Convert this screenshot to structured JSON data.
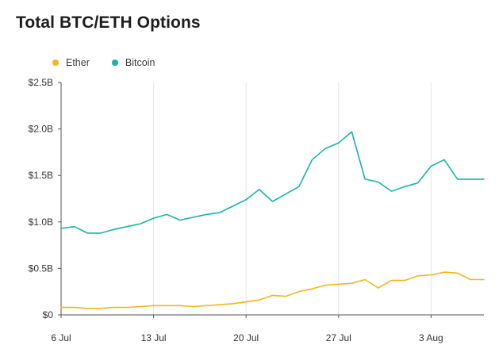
{
  "chart_data": {
    "type": "line",
    "title": "Total BTC/ETH Options",
    "xlabel": "",
    "ylabel": "",
    "x": [
      "6 Jul",
      "7 Jul",
      "8 Jul",
      "9 Jul",
      "10 Jul",
      "11 Jul",
      "12 Jul",
      "13 Jul",
      "14 Jul",
      "15 Jul",
      "16 Jul",
      "17 Jul",
      "18 Jul",
      "19 Jul",
      "20 Jul",
      "21 Jul",
      "22 Jul",
      "23 Jul",
      "24 Jul",
      "25 Jul",
      "26 Jul",
      "27 Jul",
      "28 Jul",
      "29 Jul",
      "30 Jul",
      "31 Jul",
      "1 Aug",
      "2 Aug",
      "3 Aug",
      "4 Aug",
      "5 Aug",
      "6 Aug",
      "7 Aug"
    ],
    "x_tick_labels": [
      "6 Jul",
      "13 Jul",
      "20 Jul",
      "27 Jul",
      "3 Aug"
    ],
    "x_tick_values": [
      "6 Jul",
      "13 Jul",
      "20 Jul",
      "27 Jul",
      "3 Aug"
    ],
    "ylim": [
      0,
      2.5
    ],
    "y_unit": "$B",
    "y_ticks": [
      0,
      0.5,
      1.0,
      1.5,
      2.0,
      2.5
    ],
    "y_tick_labels": [
      "$0",
      "$0.5B",
      "$1.0B",
      "$1.5B",
      "$2.0B",
      "$2.5B"
    ],
    "series": [
      {
        "name": "Ether",
        "color": "#f2b61d",
        "values": [
          0.08,
          0.08,
          0.07,
          0.07,
          0.08,
          0.08,
          0.09,
          0.1,
          0.1,
          0.1,
          0.09,
          0.1,
          0.11,
          0.12,
          0.14,
          0.16,
          0.21,
          0.2,
          0.25,
          0.28,
          0.32,
          0.33,
          0.34,
          0.38,
          0.29,
          0.37,
          0.37,
          0.42,
          0.43,
          0.46,
          0.45,
          0.38,
          0.38
        ]
      },
      {
        "name": "Bitcoin",
        "color": "#1ab3a6",
        "values": [
          0.93,
          0.95,
          0.88,
          0.88,
          0.92,
          0.95,
          0.98,
          1.04,
          1.08,
          1.02,
          1.05,
          1.08,
          1.1,
          1.17,
          1.24,
          1.35,
          1.22,
          1.3,
          1.38,
          1.67,
          1.79,
          1.85,
          1.97,
          1.46,
          1.43,
          1.33,
          1.38,
          1.42,
          1.6,
          1.67,
          1.46,
          1.46,
          1.46
        ]
      }
    ],
    "grid": "vertical-only",
    "legend_position": "top-left"
  }
}
